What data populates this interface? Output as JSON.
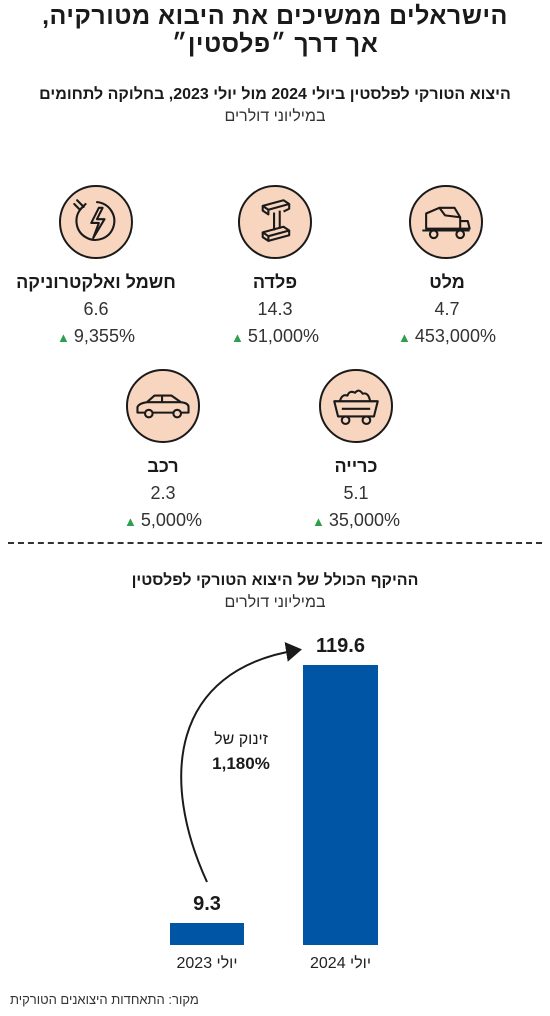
{
  "header": {
    "title_line1": "הישראלים ממשיכים את היבוא מטורקיה,",
    "title_line2": "אך דרך ״פלסטין״"
  },
  "section1": {
    "subtitle": "היצוא הטורקי לפלסטין ביולי 2024 מול יולי 2023, בחלוקה לתחומים",
    "unit": "במיליוני דולרים",
    "growth_color": "#2e9e4f",
    "icon_bg": "#f8d5bf",
    "categories": [
      {
        "name": "מלט",
        "value": "4.7",
        "growth": "453,000%",
        "icon": "cement-mixer-icon"
      },
      {
        "name": "פלדה",
        "value": "14.3",
        "growth": "51,000%",
        "icon": "steel-beam-icon"
      },
      {
        "name": "חשמל ואלקטרוניקה",
        "value": "6.6",
        "growth": "9,355%",
        "icon": "electric-plug-icon"
      },
      {
        "name": "כרייה",
        "value": "5.1",
        "growth": "35,000%",
        "icon": "mining-cart-icon"
      },
      {
        "name": "רכב",
        "value": "2.3",
        "growth": "5,000%",
        "icon": "car-icon"
      }
    ]
  },
  "section2": {
    "subtitle": "ההיקף הכולל של היצוא הטורקי לפלסטין",
    "unit": "במיליוני דולרים",
    "jump_label": "זינוק של",
    "jump_value": "1,180%"
  },
  "chart_data": {
    "type": "bar",
    "categories": [
      "יולי 2023",
      "יולי 2024"
    ],
    "values": [
      9.3,
      119.6
    ],
    "value_labels": [
      "9.3",
      "119.6"
    ],
    "bar_color": "#0055a5"
  },
  "source": "מקור: התאחדות היצואנים הטורקית"
}
